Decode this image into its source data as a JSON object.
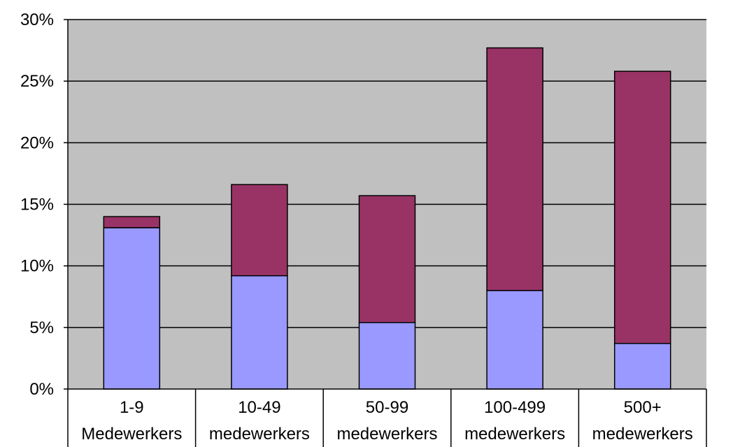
{
  "chart_data": {
    "type": "bar",
    "stacked": true,
    "categories": [
      [
        "1-9",
        "Medewerkers"
      ],
      [
        "10-49",
        "medewerkers"
      ],
      [
        "50-99",
        "medewerkers"
      ],
      [
        "100-499",
        "medewerkers"
      ],
      [
        "500+",
        "medewerkers"
      ]
    ],
    "series": [
      {
        "color": "#9999ff",
        "values": [
          13.1,
          9.2,
          5.4,
          8.0,
          3.7
        ]
      },
      {
        "color": "#993366",
        "values": [
          0.9,
          7.4,
          10.3,
          19.7,
          22.1
        ]
      }
    ],
    "ylim": [
      0,
      30
    ],
    "yticks": [
      0,
      5,
      10,
      15,
      20,
      25,
      30
    ],
    "ytick_labels": [
      "0%",
      "5%",
      "10%",
      "15%",
      "20%",
      "25%",
      "30%"
    ],
    "grid": true,
    "plot_background": "#c0c0c0",
    "title": "",
    "xlabel": "",
    "ylabel": ""
  }
}
